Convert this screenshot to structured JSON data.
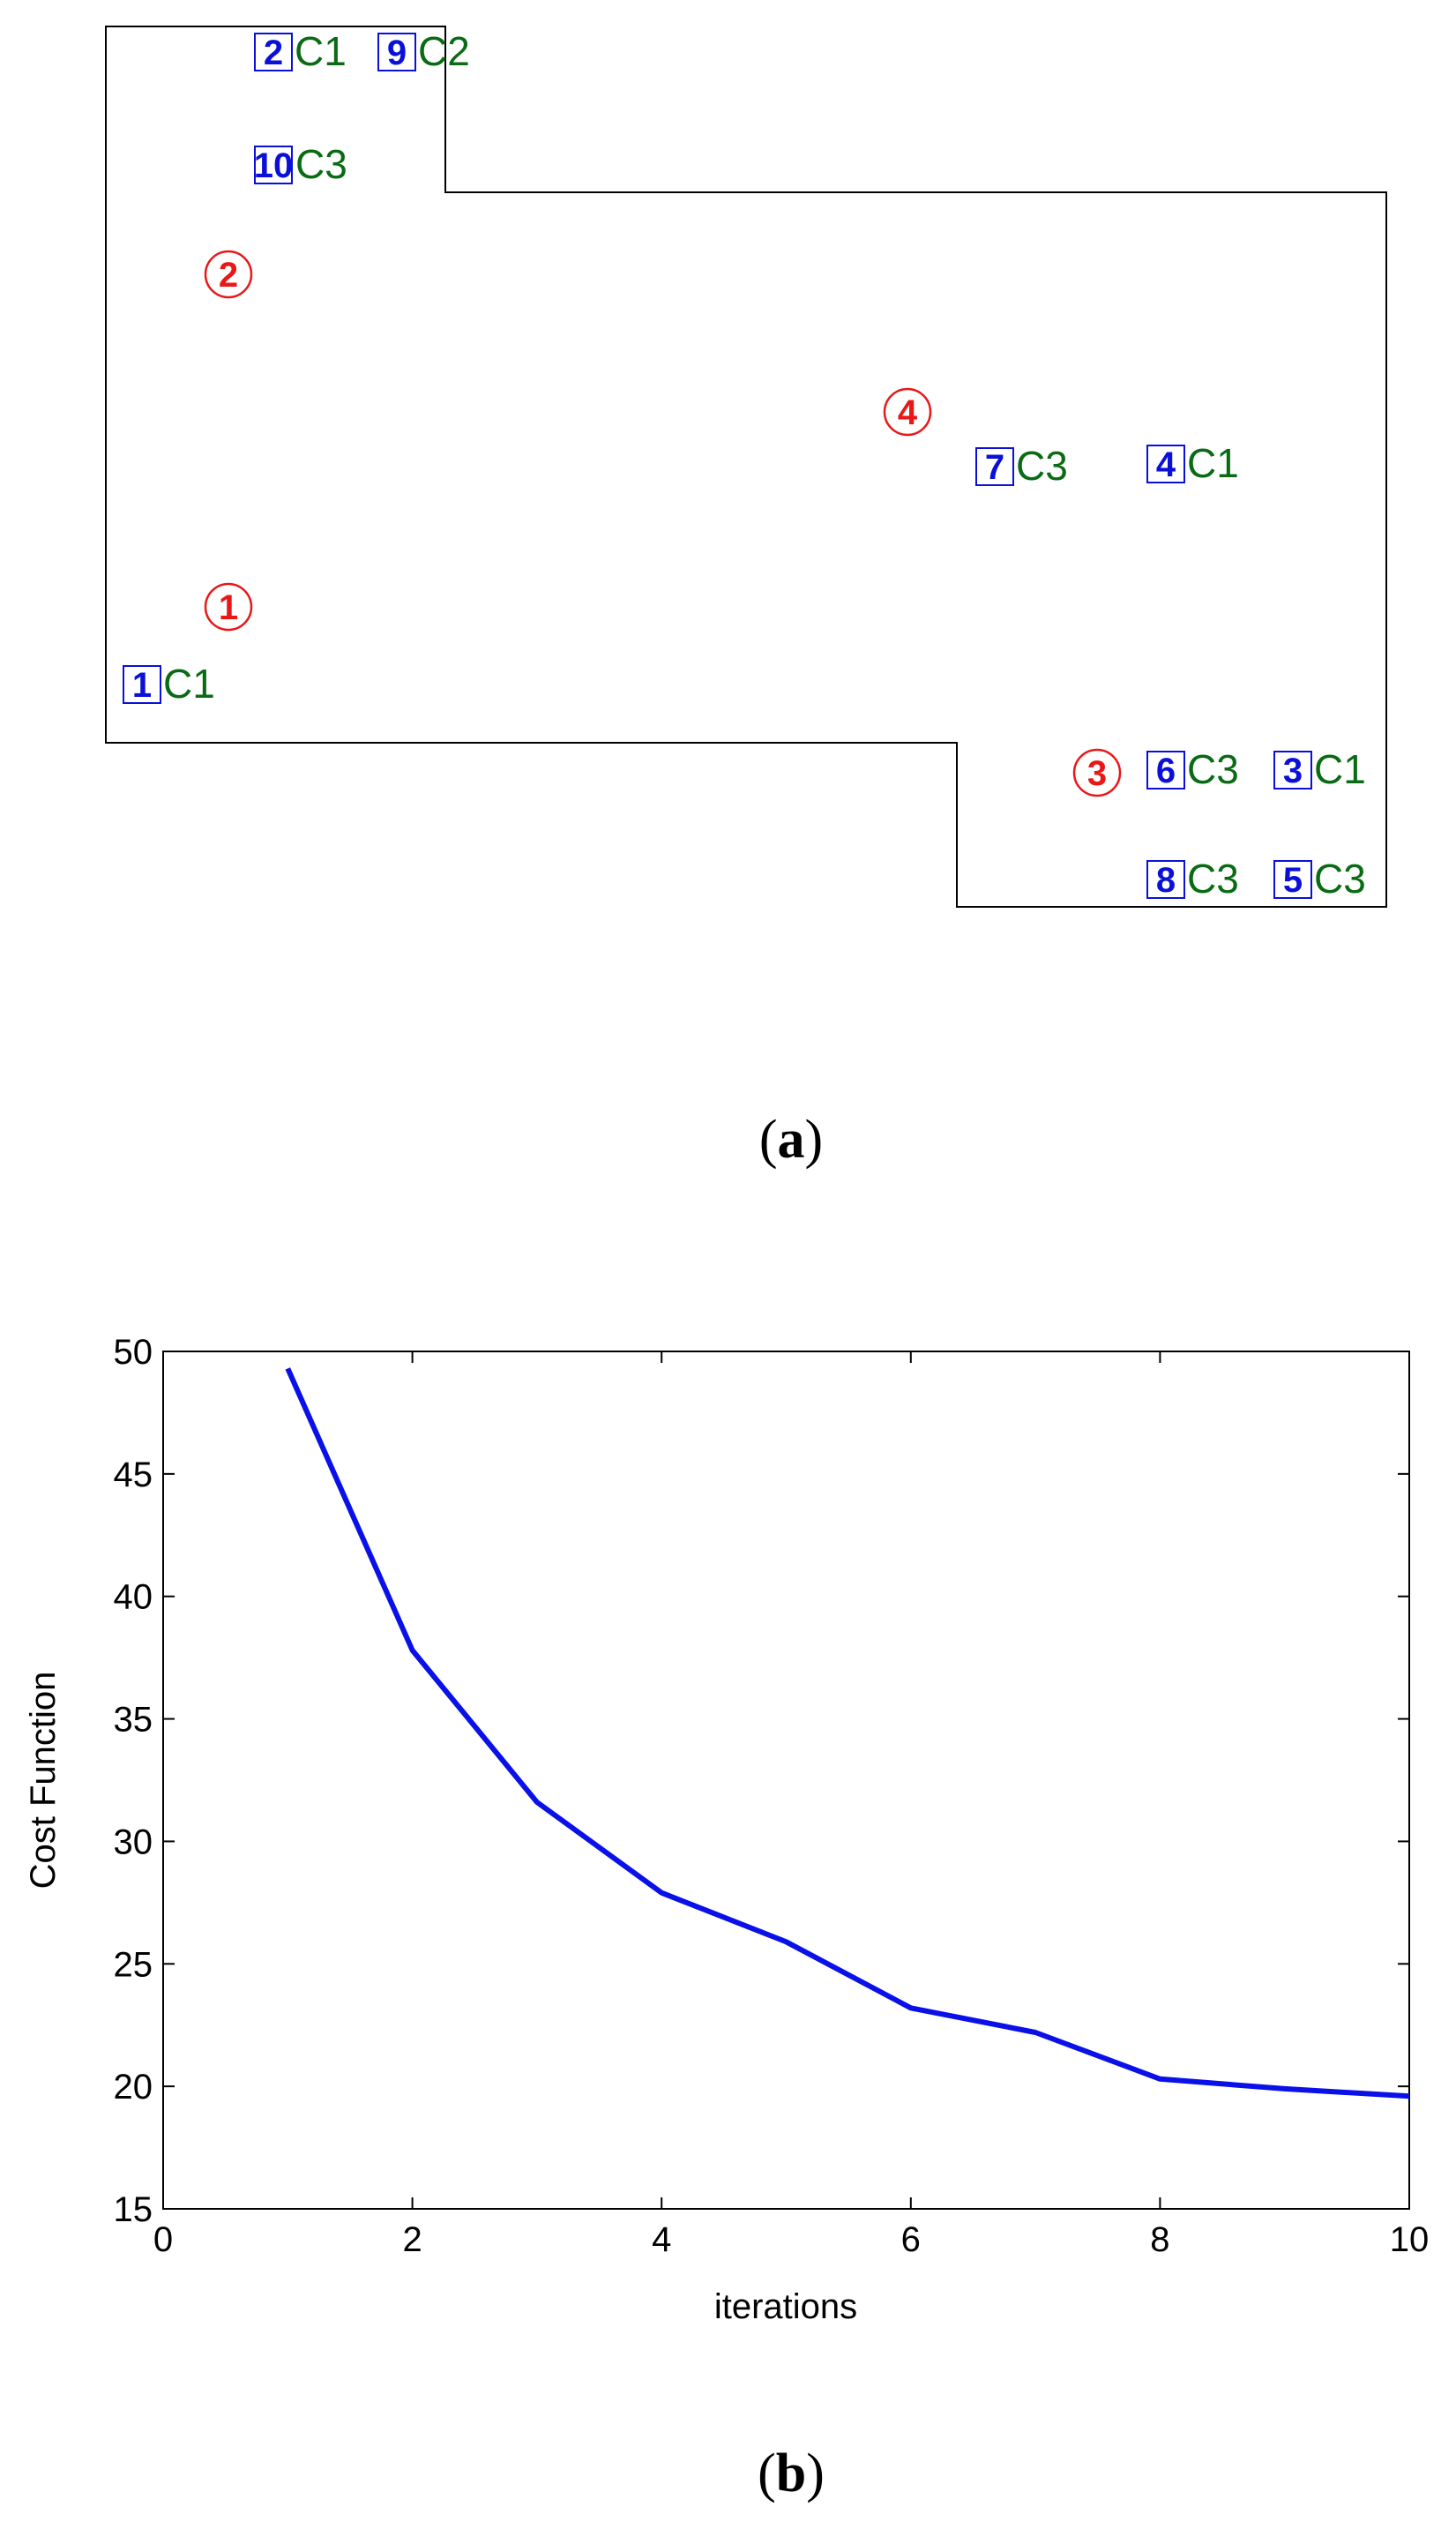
{
  "floorplan": {
    "label_paren_open": "(",
    "label_letter": "a",
    "label_paren_close": ")",
    "outline_color": "#000000",
    "anchor_color": "#e81818",
    "node_color": "#0a10d8",
    "class_color": "#0a6b14",
    "anchors": [
      {
        "id": "1"
      },
      {
        "id": "2"
      },
      {
        "id": "3"
      },
      {
        "id": "4"
      }
    ],
    "nodes": [
      {
        "id": "1",
        "cls": "C1"
      },
      {
        "id": "2",
        "cls": "C1"
      },
      {
        "id": "3",
        "cls": "C1"
      },
      {
        "id": "4",
        "cls": "C1"
      },
      {
        "id": "5",
        "cls": "C3"
      },
      {
        "id": "6",
        "cls": "C3"
      },
      {
        "id": "7",
        "cls": "C3"
      },
      {
        "id": "8",
        "cls": "C3"
      },
      {
        "id": "9",
        "cls": "C2"
      },
      {
        "id": "10",
        "cls": "C3"
      }
    ]
  },
  "chart_data": {
    "type": "line",
    "panel_label_paren_open": "(",
    "panel_label_letter": "b",
    "panel_label_paren_close": ")",
    "xlabel": "iterations",
    "ylabel": "Cost Function",
    "xlim": [
      0,
      10
    ],
    "ylim": [
      15,
      50
    ],
    "xticks": [
      "0",
      "2",
      "4",
      "6",
      "8",
      "10"
    ],
    "yticks": [
      "15",
      "20",
      "25",
      "30",
      "35",
      "40",
      "45",
      "50"
    ],
    "grid": false,
    "line_color": "#0a10e8",
    "series": [
      {
        "x": [
          1,
          2,
          3,
          4,
          5,
          6,
          7,
          8,
          9,
          10
        ],
        "values": [
          49.3,
          37.8,
          31.6,
          27.9,
          25.9,
          23.2,
          22.2,
          20.3,
          19.9,
          19.6
        ]
      }
    ]
  }
}
